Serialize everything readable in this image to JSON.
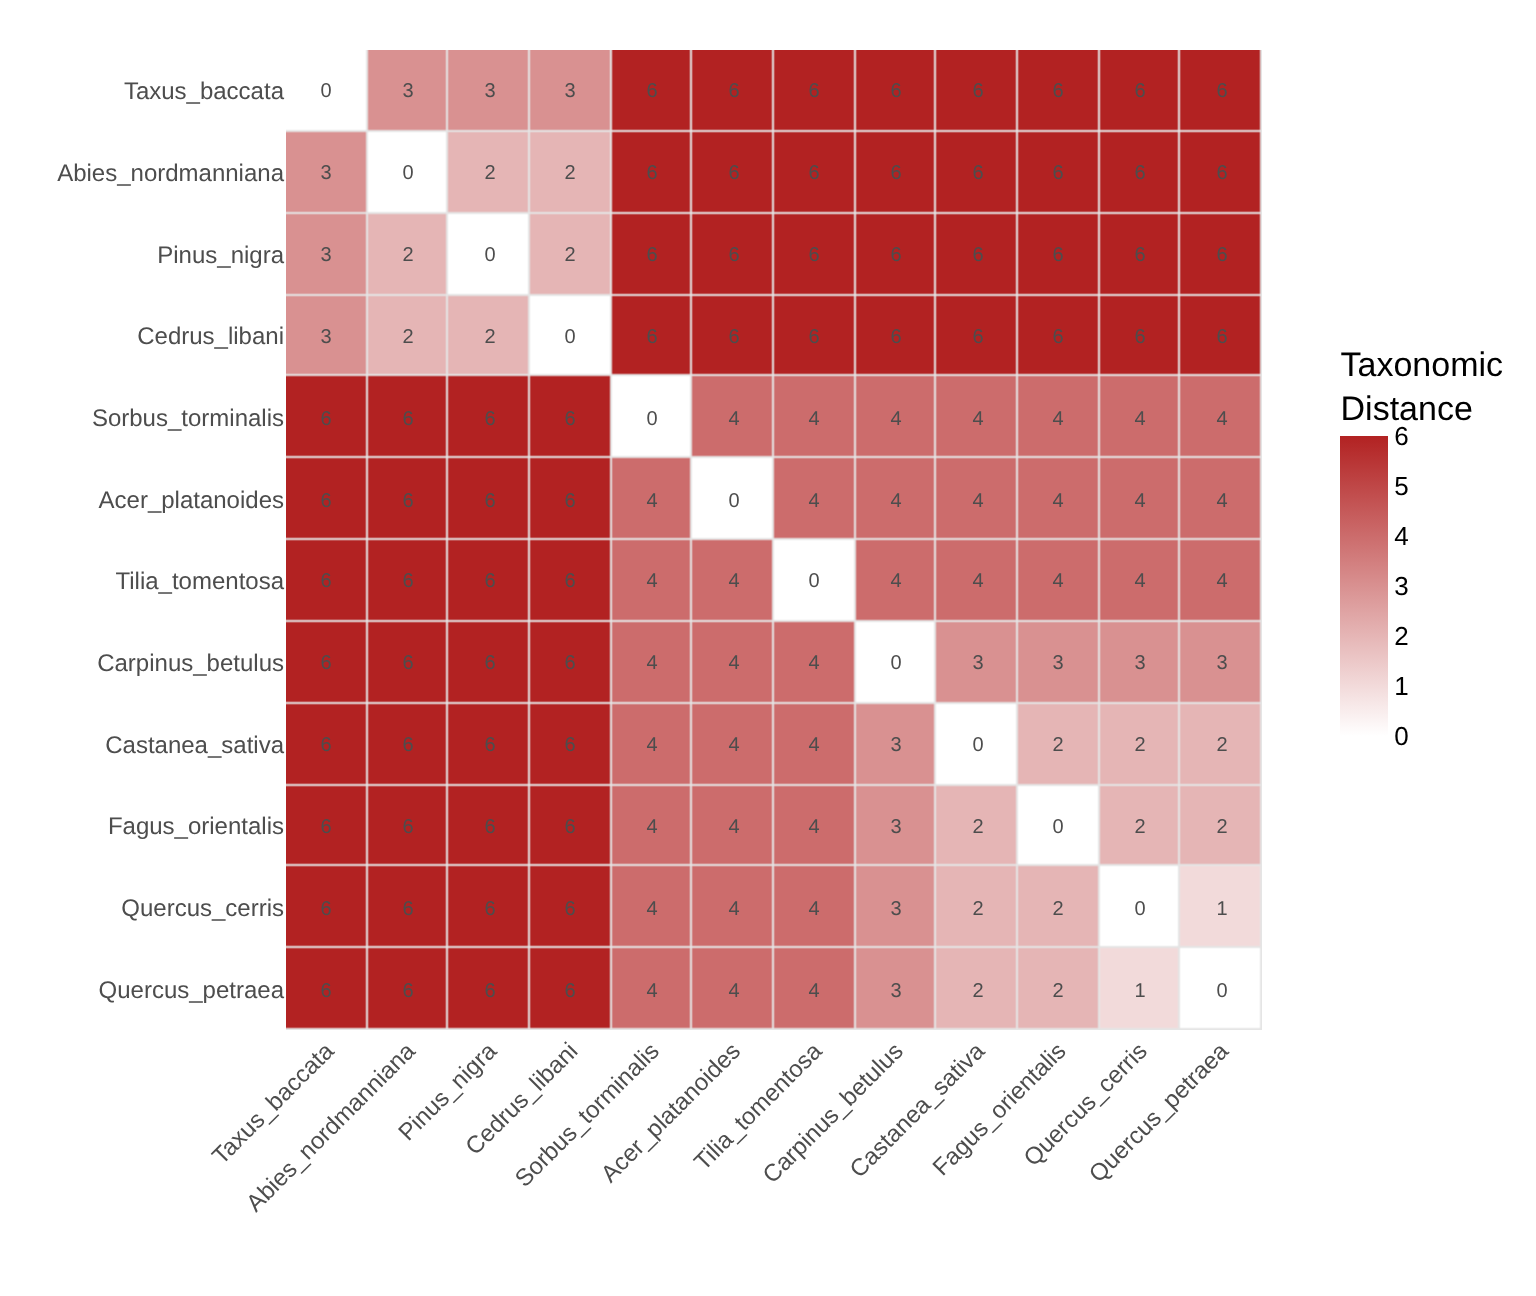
{
  "chart_data": {
    "type": "heatmap",
    "categories": [
      "Taxus_baccata",
      "Abies_nordmanniana",
      "Pinus_nigra",
      "Cedrus_libani",
      "Sorbus_torminalis",
      "Acer_platanoides",
      "Tilia_tomentosa",
      "Carpinus_betulus",
      "Castanea_sativa",
      "Fagus_orientalis",
      "Quercus_cerris",
      "Quercus_petraea"
    ],
    "y_categories": [
      "Taxus_baccata",
      "Abies_nordmanniana",
      "Pinus_nigra",
      "Cedrus_libani",
      "Sorbus_torminalis",
      "Acer_platanoides",
      "Tilia_tomentosa",
      "Carpinus_betulus",
      "Castanea_sativa",
      "Fagus_orientalis",
      "Quercus_cerris",
      "Quercus_petraea"
    ],
    "cells": [
      [
        0,
        3,
        3,
        3,
        6,
        6,
        6,
        6,
        6,
        6,
        6,
        6
      ],
      [
        3,
        0,
        2,
        2,
        6,
        6,
        6,
        6,
        6,
        6,
        6,
        6
      ],
      [
        3,
        2,
        0,
        2,
        6,
        6,
        6,
        6,
        6,
        6,
        6,
        6
      ],
      [
        3,
        2,
        2,
        0,
        6,
        6,
        6,
        6,
        6,
        6,
        6,
        6
      ],
      [
        6,
        6,
        6,
        6,
        0,
        4,
        4,
        4,
        4,
        4,
        4,
        4
      ],
      [
        6,
        6,
        6,
        6,
        4,
        0,
        4,
        4,
        4,
        4,
        4,
        4
      ],
      [
        6,
        6,
        6,
        6,
        4,
        4,
        0,
        4,
        4,
        4,
        4,
        4
      ],
      [
        6,
        6,
        6,
        6,
        4,
        4,
        4,
        0,
        3,
        3,
        3,
        3
      ],
      [
        6,
        6,
        6,
        6,
        4,
        4,
        4,
        3,
        0,
        2,
        2,
        2
      ],
      [
        6,
        6,
        6,
        6,
        4,
        4,
        4,
        3,
        2,
        0,
        2,
        2
      ],
      [
        6,
        6,
        6,
        6,
        4,
        4,
        4,
        3,
        2,
        2,
        0,
        1
      ],
      [
        6,
        6,
        6,
        6,
        4,
        4,
        4,
        3,
        2,
        2,
        1,
        0
      ]
    ],
    "clabel": "Taxonomic Distance",
    "clim": [
      0,
      6
    ],
    "cticks": [
      0,
      1,
      2,
      3,
      4,
      5,
      6
    ],
    "data_labels": true,
    "color": "#b22222"
  }
}
